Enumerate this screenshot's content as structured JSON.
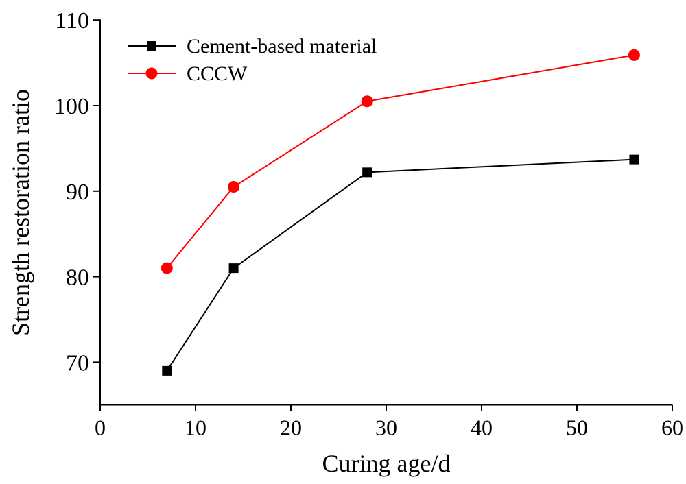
{
  "chart_data": {
    "type": "line",
    "title": "",
    "xlabel": "Curing age/d",
    "ylabel": "Strength restoration ratio",
    "xlim": [
      0,
      60
    ],
    "ylim": [
      65,
      110
    ],
    "xticks": [
      0,
      10,
      20,
      30,
      40,
      50,
      60
    ],
    "yticks": [
      70,
      80,
      90,
      100,
      110
    ],
    "grid": false,
    "legend": "top-left",
    "x": [
      7,
      14,
      28,
      56
    ],
    "series": [
      {
        "name": "Cement-based material",
        "values": [
          69.0,
          81.0,
          92.2,
          93.7
        ],
        "color": "#000000",
        "marker": "square"
      },
      {
        "name": "CCCW",
        "values": [
          81.0,
          90.5,
          100.5,
          105.9
        ],
        "color": "#ff0000",
        "marker": "circle"
      }
    ]
  }
}
